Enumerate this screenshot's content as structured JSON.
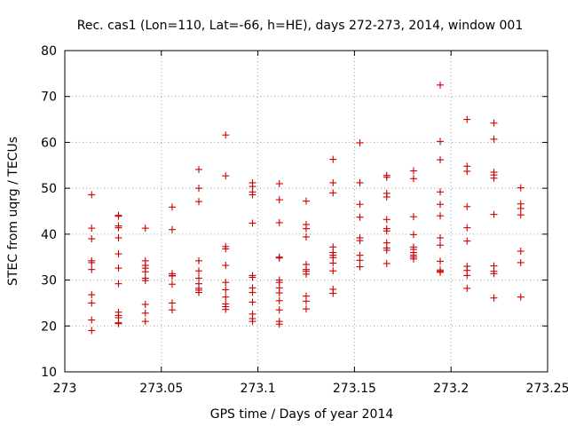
{
  "chart_data": {
    "type": "scatter",
    "title": "Rec. cas1 (Lon=110, Lat=-66, h=HE), days 272-273, 2014, window 001",
    "xlabel": "GPS time / Days of year 2014",
    "ylabel": "STEC from uqrg / TECUs",
    "xlim": [
      273,
      273.25
    ],
    "ylim": [
      10,
      80
    ],
    "xticks": [
      "273",
      "273.05",
      "273.1",
      "273.15",
      "273.2",
      "273.25"
    ],
    "yticks": [
      "10",
      "20",
      "30",
      "40",
      "50",
      "60",
      "70",
      "80"
    ],
    "grid": true,
    "marker": "+",
    "color": "#cc0000",
    "series": [
      {
        "name": "STEC",
        "x": [
          273.0139,
          273.0139,
          273.0139,
          273.0139,
          273.0139,
          273.0139,
          273.0139,
          273.0139,
          273.0139,
          273.0139,
          273.0278,
          273.0278,
          273.0278,
          273.0278,
          273.0278,
          273.0278,
          273.0278,
          273.0278,
          273.0278,
          273.0278,
          273.0278,
          273.0278,
          273.0278,
          273.0417,
          273.0417,
          273.0417,
          273.0417,
          273.0417,
          273.0417,
          273.0417,
          273.0417,
          273.0417,
          273.0417,
          273.0556,
          273.0556,
          273.0556,
          273.0556,
          273.0556,
          273.0556,
          273.0556,
          273.0556,
          273.0694,
          273.0694,
          273.0694,
          273.0694,
          273.0694,
          273.0694,
          273.0694,
          273.0694,
          273.0694,
          273.0694,
          273.0833,
          273.0833,
          273.0833,
          273.0833,
          273.0833,
          273.0833,
          273.0833,
          273.0833,
          273.0833,
          273.0833,
          273.0833,
          273.0972,
          273.0972,
          273.0972,
          273.0972,
          273.0972,
          273.0972,
          273.0972,
          273.0972,
          273.0972,
          273.0972,
          273.0972,
          273.0972,
          273.0972,
          273.1111,
          273.1111,
          273.1111,
          273.1111,
          273.1111,
          273.1111,
          273.1111,
          273.1111,
          273.1111,
          273.1111,
          273.1111,
          273.1111,
          273.1111,
          273.125,
          273.125,
          273.125,
          273.125,
          273.125,
          273.125,
          273.125,
          273.125,
          273.125,
          273.125,
          273.125,
          273.1389,
          273.1389,
          273.1389,
          273.1389,
          273.1389,
          273.1389,
          273.1389,
          273.1389,
          273.1389,
          273.1389,
          273.1389,
          273.1528,
          273.1528,
          273.1528,
          273.1528,
          273.1528,
          273.1528,
          273.1528,
          273.1528,
          273.1528,
          273.1667,
          273.1667,
          273.1667,
          273.1667,
          273.1667,
          273.1667,
          273.1667,
          273.1667,
          273.1667,
          273.1667,
          273.1667,
          273.1806,
          273.1806,
          273.1806,
          273.1806,
          273.1806,
          273.1806,
          273.1806,
          273.1806,
          273.1806,
          273.1806,
          273.1944,
          273.1944,
          273.1944,
          273.1944,
          273.1944,
          273.1944,
          273.1944,
          273.1944,
          273.1944,
          273.1944,
          273.1944,
          273.1944,
          273.2083,
          273.2083,
          273.2083,
          273.2083,
          273.2083,
          273.2083,
          273.2083,
          273.2083,
          273.2083,
          273.2083,
          273.2222,
          273.2222,
          273.2222,
          273.2222,
          273.2222,
          273.2222,
          273.2222,
          273.2222,
          273.2222,
          273.2222,
          273.2361,
          273.2361,
          273.2361,
          273.2361,
          273.2361,
          273.2361,
          273.2361
        ],
        "y": [
          48.6,
          41.3,
          39.0,
          34.2,
          33.8,
          32.3,
          26.8,
          25.0,
          21.3,
          19.0,
          44.1,
          43.9,
          41.8,
          41.4,
          39.2,
          35.7,
          32.6,
          29.2,
          23.0,
          22.3,
          21.8,
          20.7,
          20.5,
          41.3,
          34.2,
          33.2,
          32.6,
          31.8,
          30.4,
          29.9,
          24.7,
          22.8,
          21.0,
          45.9,
          41.0,
          31.4,
          31.0,
          30.9,
          29.1,
          25.0,
          23.5,
          54.1,
          50.0,
          47.1,
          34.2,
          32.0,
          30.4,
          29.2,
          28.2,
          27.8,
          27.3,
          61.6,
          52.7,
          37.3,
          36.8,
          33.2,
          29.5,
          27.9,
          26.3,
          24.8,
          24.2,
          23.6,
          51.2,
          50.4,
          49.2,
          48.6,
          42.4,
          31.0,
          30.6,
          28.3,
          27.3,
          25.2,
          22.6,
          21.6,
          21.0,
          51.0,
          47.5,
          42.5,
          35.0,
          34.8,
          30.0,
          29.5,
          28.3,
          27.2,
          25.5,
          23.5,
          21.0,
          20.4,
          47.2,
          42.1,
          41.2,
          39.4,
          33.4,
          32.3,
          31.9,
          31.3,
          26.5,
          25.4,
          23.7,
          56.3,
          51.2,
          49.0,
          37.2,
          36.0,
          35.4,
          34.9,
          33.7,
          32.0,
          28.0,
          27.1,
          59.9,
          51.2,
          46.5,
          43.7,
          39.2,
          38.6,
          35.4,
          34.3,
          32.9,
          52.8,
          52.4,
          48.9,
          48.1,
          43.2,
          41.2,
          40.7,
          38.1,
          37.0,
          36.5,
          33.6,
          53.8,
          52.1,
          43.8,
          39.9,
          37.2,
          36.7,
          36.0,
          35.4,
          35.0,
          34.6,
          72.5,
          60.2,
          56.2,
          49.2,
          46.5,
          44.0,
          39.2,
          37.6,
          34.1,
          32.2,
          31.9,
          31.7,
          65.0,
          54.8,
          53.7,
          46.0,
          41.4,
          38.5,
          33.0,
          32.1,
          31.0,
          28.2,
          64.2,
          60.7,
          53.5,
          52.9,
          52.2,
          44.3,
          33.1,
          31.9,
          31.4,
          26.1,
          50.1,
          46.6,
          45.6,
          44.2,
          36.3,
          33.8,
          26.3
        ]
      }
    ]
  }
}
